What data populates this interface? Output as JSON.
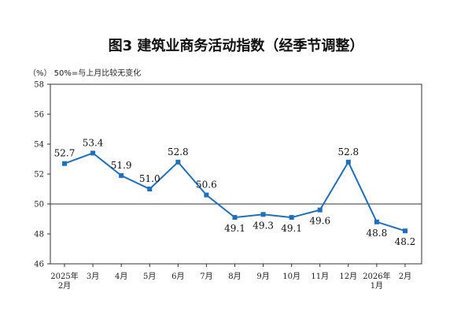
{
  "chart_data": {
    "type": "line",
    "title": "图3  建筑业商务活动指数（经季节调整）",
    "ylabel_note": "（%）  50%=与上月比较无变化",
    "categories": [
      "2025年2月",
      "3月",
      "4月",
      "5月",
      "6月",
      "7月",
      "8月",
      "9月",
      "10月",
      "11月",
      "12月",
      "2026年1月",
      "2月"
    ],
    "category_lines": [
      [
        "2025年",
        "2月"
      ],
      [
        "3月"
      ],
      [
        "4月"
      ],
      [
        "5月"
      ],
      [
        "6月"
      ],
      [
        "7月"
      ],
      [
        "8月"
      ],
      [
        "9月"
      ],
      [
        "10月"
      ],
      [
        "11月"
      ],
      [
        "12月"
      ],
      [
        "2026年",
        "1月"
      ],
      [
        "2月"
      ]
    ],
    "series": [
      {
        "values": [
          52.7,
          53.4,
          51.9,
          51.0,
          52.8,
          50.6,
          49.1,
          49.3,
          49.1,
          49.6,
          52.8,
          48.8,
          48.2
        ],
        "value_labels": [
          "52.7",
          "53.4",
          "51.9",
          "51.0",
          "52.8",
          "50.6",
          "49.1",
          "49.3",
          "49.1",
          "49.6",
          "52.8",
          "48.8",
          "48.2"
        ],
        "label_position": [
          "above",
          "above",
          "above",
          "above",
          "above",
          "above",
          "below",
          "below",
          "below",
          "below",
          "above",
          "below",
          "below"
        ],
        "color": "#1f6fbf"
      }
    ],
    "ylim": [
      46,
      58
    ],
    "yticks": [
      46,
      48,
      50,
      52,
      54,
      56,
      58
    ],
    "reference_line": 50,
    "grid": false,
    "legend": "none"
  }
}
